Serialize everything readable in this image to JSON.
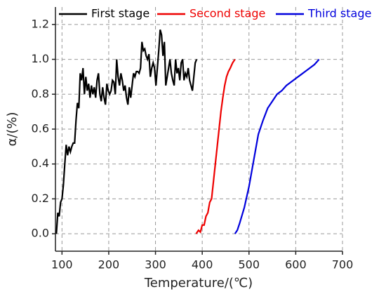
{
  "chart_data": {
    "type": "line",
    "xlabel": "Temperature/(℃)",
    "ylabel": "α/(%)",
    "xlim": [
      86,
      700
    ],
    "xticks": [
      100,
      200,
      300,
      400,
      500,
      600,
      700
    ],
    "ylim": [
      -0.1,
      1.3
    ],
    "yticks": [
      {
        "value": 0,
        "label": "0.0"
      },
      0.2,
      0.4,
      0.6,
      0.8,
      {
        "value": 1,
        "label": "1.0"
      },
      1.2
    ],
    "grid": true,
    "legend": "top",
    "series": [
      {
        "name": "First stage",
        "color": "#000000",
        "x": [
          88,
          91,
          94,
          97,
          100,
          103,
          106,
          109,
          112,
          115,
          118,
          121,
          124,
          127,
          130,
          133,
          136,
          139,
          142,
          145,
          148,
          151,
          154,
          157,
          160,
          163,
          166,
          169,
          172,
          175,
          178,
          181,
          184,
          187,
          190,
          193,
          196,
          199,
          202,
          205,
          208,
          211,
          214,
          217,
          220,
          223,
          226,
          229,
          232,
          235,
          238,
          241,
          244,
          247,
          250,
          253,
          256,
          259,
          262,
          265,
          268,
          271,
          274,
          277,
          280,
          283,
          286,
          289,
          292,
          295,
          298,
          301,
          304,
          307,
          310,
          313,
          316,
          319,
          322,
          325,
          328,
          331,
          334,
          337,
          340,
          343,
          346,
          349,
          352,
          355,
          358,
          361,
          364,
          367,
          370,
          373,
          376,
          379,
          382,
          385,
          388
        ],
        "values": [
          0,
          0.12,
          0.1,
          0.18,
          0.2,
          0.28,
          0.4,
          0.51,
          0.45,
          0.5,
          0.47,
          0.5,
          0.52,
          0.52,
          0.65,
          0.75,
          0.72,
          0.92,
          0.88,
          0.95,
          0.8,
          0.9,
          0.82,
          0.86,
          0.78,
          0.85,
          0.8,
          0.84,
          0.78,
          0.88,
          0.92,
          0.8,
          0.76,
          0.84,
          0.78,
          0.74,
          0.86,
          0.82,
          0.8,
          0.82,
          0.88,
          0.87,
          0.8,
          1.0,
          0.9,
          0.85,
          0.92,
          0.88,
          0.82,
          0.85,
          0.78,
          0.74,
          0.84,
          0.78,
          0.85,
          0.92,
          0.9,
          0.93,
          0.93,
          0.92,
          0.95,
          1.1,
          1.05,
          1.06,
          1.02,
          1.0,
          1.03,
          0.9,
          0.95,
          0.98,
          0.95,
          0.85,
          0.95,
          1.05,
          1.17,
          1.14,
          1.02,
          1.1,
          0.85,
          0.9,
          0.95,
          1.0,
          0.92,
          0.88,
          0.85,
          1.0,
          0.92,
          0.95,
          0.88,
          0.98,
          1.0,
          0.88,
          0.92,
          0.9,
          0.95,
          0.88,
          0.85,
          0.82,
          0.9,
          0.98,
          1.0
        ]
      },
      {
        "name": "Second stage",
        "color": "#ee0000",
        "x": [
          387,
          392,
          396,
          400,
          404,
          408,
          412,
          416,
          420,
          424,
          428,
          432,
          436,
          440,
          444,
          448,
          452,
          456,
          460,
          465,
          470
        ],
        "values": [
          0,
          0.02,
          0.01,
          0.05,
          0.05,
          0.1,
          0.12,
          0.18,
          0.2,
          0.3,
          0.4,
          0.5,
          0.6,
          0.7,
          0.78,
          0.85,
          0.9,
          0.93,
          0.95,
          0.98,
          1.0
        ]
      },
      {
        "name": "Third stage",
        "color": "#0000dd",
        "x": [
          470,
          475,
          480,
          490,
          500,
          510,
          520,
          530,
          540,
          550,
          560,
          570,
          580,
          590,
          600,
          610,
          620,
          630,
          640,
          650
        ],
        "values": [
          0,
          0.02,
          0.06,
          0.15,
          0.27,
          0.42,
          0.57,
          0.65,
          0.72,
          0.76,
          0.8,
          0.82,
          0.85,
          0.87,
          0.89,
          0.91,
          0.93,
          0.95,
          0.97,
          1.0
        ]
      }
    ]
  }
}
